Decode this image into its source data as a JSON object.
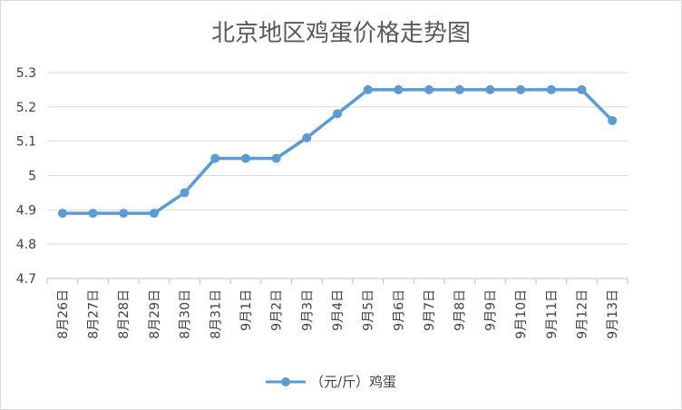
{
  "chart_data": {
    "type": "line",
    "title": "北京地区鸡蛋价格走势图",
    "categories": [
      "8月26日",
      "8月27日",
      "8月28日",
      "8月29日",
      "8月30日",
      "8月31日",
      "9月1日",
      "9月2日",
      "9月3日",
      "9月4日",
      "9月5日",
      "9月6日",
      "9月7日",
      "9月8日",
      "9月9日",
      "9月10日",
      "9月11日",
      "9月12日",
      "9月13日"
    ],
    "series": [
      {
        "name": "（元/斤）鸡蛋",
        "values": [
          4.89,
          4.89,
          4.89,
          4.89,
          4.95,
          5.05,
          5.05,
          5.05,
          5.11,
          5.18,
          5.25,
          5.25,
          5.25,
          5.25,
          5.25,
          5.25,
          5.25,
          5.25,
          5.16
        ]
      }
    ],
    "ylim": [
      4.7,
      5.3
    ],
    "yticks": [
      "4.7",
      "4.8",
      "4.9",
      "5",
      "5.1",
      "5.2",
      "5.3"
    ],
    "grid": true,
    "legend_position": "bottom",
    "color": "#5b9bd5"
  }
}
